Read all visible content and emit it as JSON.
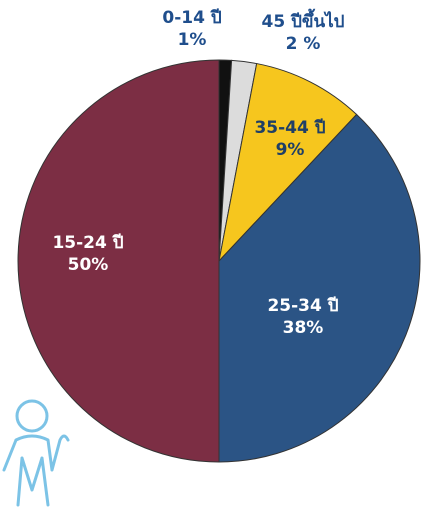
{
  "chart_data": {
    "type": "pie",
    "categories": [
      "0-14 ปี",
      "45 ปีขึ้นไป",
      "35-44 ปี",
      "25-34 ปี",
      "15-24 ปี"
    ],
    "values": [
      1,
      2,
      9,
      38,
      50
    ],
    "value_labels": [
      "1%",
      "2 %",
      "9%",
      "38%",
      "50%"
    ],
    "colors": [
      "#111111",
      "#dcdcdc",
      "#f6c61e",
      "#2b5485",
      "#7c2e44"
    ]
  }
}
